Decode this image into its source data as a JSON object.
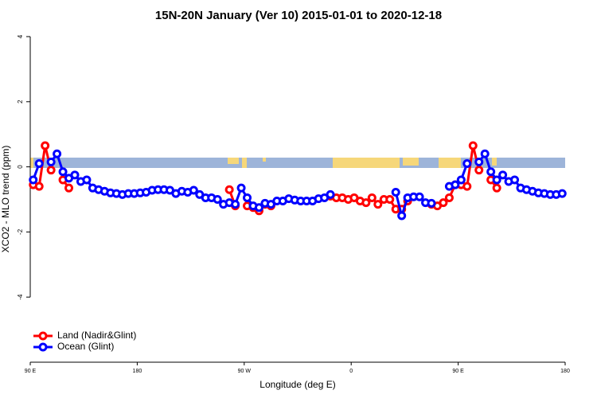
{
  "chart_data": {
    "type": "line",
    "title": "15N-20N January (Ver 10)   2015-01-01 to 2020-12-18",
    "x_label": "Longitude (deg E)",
    "y_label": "XCO2 - MLO trend (ppm)",
    "x": [
      92.5,
      97.5,
      102.5,
      107.5,
      112.5,
      117.5,
      122.5,
      127.5,
      132.5,
      137.5,
      142.5,
      147.5,
      152.5,
      157.5,
      162.5,
      167.5,
      172.5,
      177.5,
      182.5,
      187.5,
      192.5,
      197.5,
      202.5,
      207.5,
      212.5,
      217.5,
      222.5,
      227.5,
      232.5,
      237.5,
      242.5,
      247.5,
      252.5,
      257.5,
      262.5,
      267.5,
      272.5,
      277.5,
      282.5,
      287.5,
      292.5,
      297.5,
      302.5,
      307.5,
      312.5,
      317.5,
      322.5,
      327.5,
      332.5,
      337.5,
      342.5,
      347.5,
      352.5,
      357.5,
      362.5,
      367.5,
      372.5,
      377.5,
      382.5,
      387.5,
      392.5,
      397.5,
      402.5,
      407.5,
      412.5,
      417.5,
      422.5,
      427.5,
      432.5,
      437.5,
      442.5,
      447.5,
      452.5,
      457.5,
      462.5,
      467.5,
      472.5,
      477.5,
      482.5,
      487.5,
      492.5,
      497.5,
      502.5,
      507.5,
      512.5,
      517.5,
      522.5,
      527.5,
      532.5,
      537.5
    ],
    "series": [
      {
        "name": "Land (Nadir&Glint)",
        "color": "#ff0000",
        "values": [
          -0.55,
          -0.6,
          0.65,
          -0.1,
          null,
          -0.4,
          -0.65,
          null,
          null,
          null,
          null,
          null,
          null,
          null,
          null,
          null,
          null,
          null,
          null,
          null,
          null,
          null,
          null,
          null,
          null,
          null,
          null,
          null,
          null,
          null,
          null,
          null,
          null,
          -0.7,
          -1.2,
          null,
          -1.2,
          -1.25,
          -1.35,
          -1.15,
          -1.2,
          null,
          null,
          null,
          null,
          null,
          null,
          null,
          null,
          null,
          -0.9,
          -0.95,
          -0.95,
          -1.0,
          -0.95,
          -1.05,
          -1.1,
          -0.95,
          -1.15,
          -1.0,
          -1.0,
          -1.3,
          -1.3,
          -1.05,
          null,
          null,
          null,
          -1.15,
          -1.2,
          -1.1,
          -0.95,
          -0.55,
          -0.55,
          -0.6,
          0.65,
          -0.1,
          null,
          -0.4,
          -0.65,
          null,
          null,
          null,
          null,
          null,
          null,
          null,
          null,
          null,
          null,
          null
        ]
      },
      {
        "name": "Ocean (Glint)",
        "color": "#0000ff",
        "values": [
          -0.4,
          0.1,
          null,
          0.15,
          0.4,
          -0.15,
          -0.35,
          -0.25,
          -0.45,
          -0.4,
          -0.65,
          -0.7,
          -0.75,
          -0.8,
          -0.82,
          -0.85,
          -0.82,
          -0.82,
          -0.8,
          -0.78,
          -0.72,
          -0.7,
          -0.7,
          -0.72,
          -0.82,
          -0.75,
          -0.78,
          -0.72,
          -0.85,
          -0.95,
          -0.95,
          -1.0,
          -1.15,
          -1.1,
          -1.15,
          -0.65,
          -0.95,
          -1.2,
          -1.25,
          -1.12,
          -1.15,
          -1.05,
          -1.05,
          -0.98,
          -1.02,
          -1.05,
          -1.05,
          -1.05,
          -0.98,
          -0.95,
          -0.85,
          null,
          null,
          null,
          null,
          null,
          null,
          null,
          null,
          null,
          null,
          -0.78,
          -1.5,
          -0.95,
          -0.92,
          -0.92,
          -1.1,
          -1.12,
          null,
          null,
          -0.6,
          -0.55,
          -0.4,
          0.1,
          null,
          0.15,
          0.4,
          -0.15,
          -0.4,
          -0.25,
          -0.45,
          -0.4,
          -0.65,
          -0.7,
          -0.75,
          -0.8,
          -0.82,
          -0.85,
          -0.85,
          -0.82
        ]
      }
    ],
    "xlim": [
      90,
      540
    ],
    "xticks": [
      {
        "value": 90,
        "label": "90 E"
      },
      180,
      {
        "value": 270,
        "label": "90 W"
      },
      {
        "value": 360,
        "label": "0"
      },
      {
        "value": 450,
        "label": "90 E"
      },
      {
        "value": 540,
        "label": "180"
      }
    ],
    "ylim": [
      -6,
      4.2
    ],
    "yticks": [
      -4,
      -2,
      0,
      2,
      4
    ],
    "legend": "bottomleft"
  }
}
